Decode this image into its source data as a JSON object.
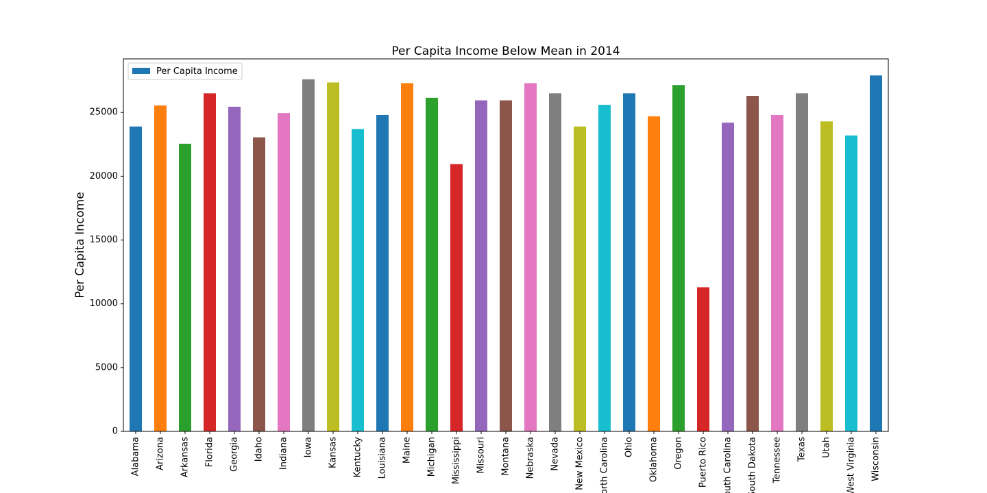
{
  "chart_data": {
    "type": "bar",
    "title": "Per Capita Income Below Mean in 2014",
    "xlabel": "",
    "ylabel": "Per Capita Income",
    "ylim": [
      0,
      29200
    ],
    "yticks": [
      0,
      5000,
      10000,
      15000,
      20000,
      25000
    ],
    "grid": false,
    "legend_position": "upper-left",
    "categories": [
      "Alabama",
      "Arizona",
      "Arkansas",
      "Florida",
      "Georgia",
      "Idaho",
      "Indiana",
      "Iowa",
      "Kansas",
      "Kentucky",
      "Louisiana",
      "Maine",
      "Michigan",
      "Mississippi",
      "Missouri",
      "Montana",
      "Nebraska",
      "Nevada",
      "New Mexico",
      "North Carolina",
      "Ohio",
      "Oklahoma",
      "Oregon",
      "Puerto Rico",
      "South Carolina",
      "South Dakota",
      "Tennessee",
      "Texas",
      "Utah",
      "West Virginia",
      "Wisconsin"
    ],
    "series": [
      {
        "name": "Per Capita Income",
        "values": [
          23900,
          25550,
          22550,
          26500,
          25450,
          23050,
          24950,
          27600,
          27350,
          23700,
          24800,
          27300,
          26150,
          20950,
          25950,
          25950,
          27300,
          26500,
          23900,
          25600,
          26500,
          24700,
          27150,
          11300,
          24200,
          26300,
          24800,
          26500,
          24300,
          23200,
          27900
        ]
      }
    ],
    "bar_colors": [
      "#1f77b4",
      "#ff7f0e",
      "#2ca02c",
      "#d62728",
      "#9467bd",
      "#8c564b",
      "#e377c2",
      "#7f7f7f",
      "#bcbd22",
      "#17becf"
    ],
    "legend_color": "#1f77b4"
  }
}
